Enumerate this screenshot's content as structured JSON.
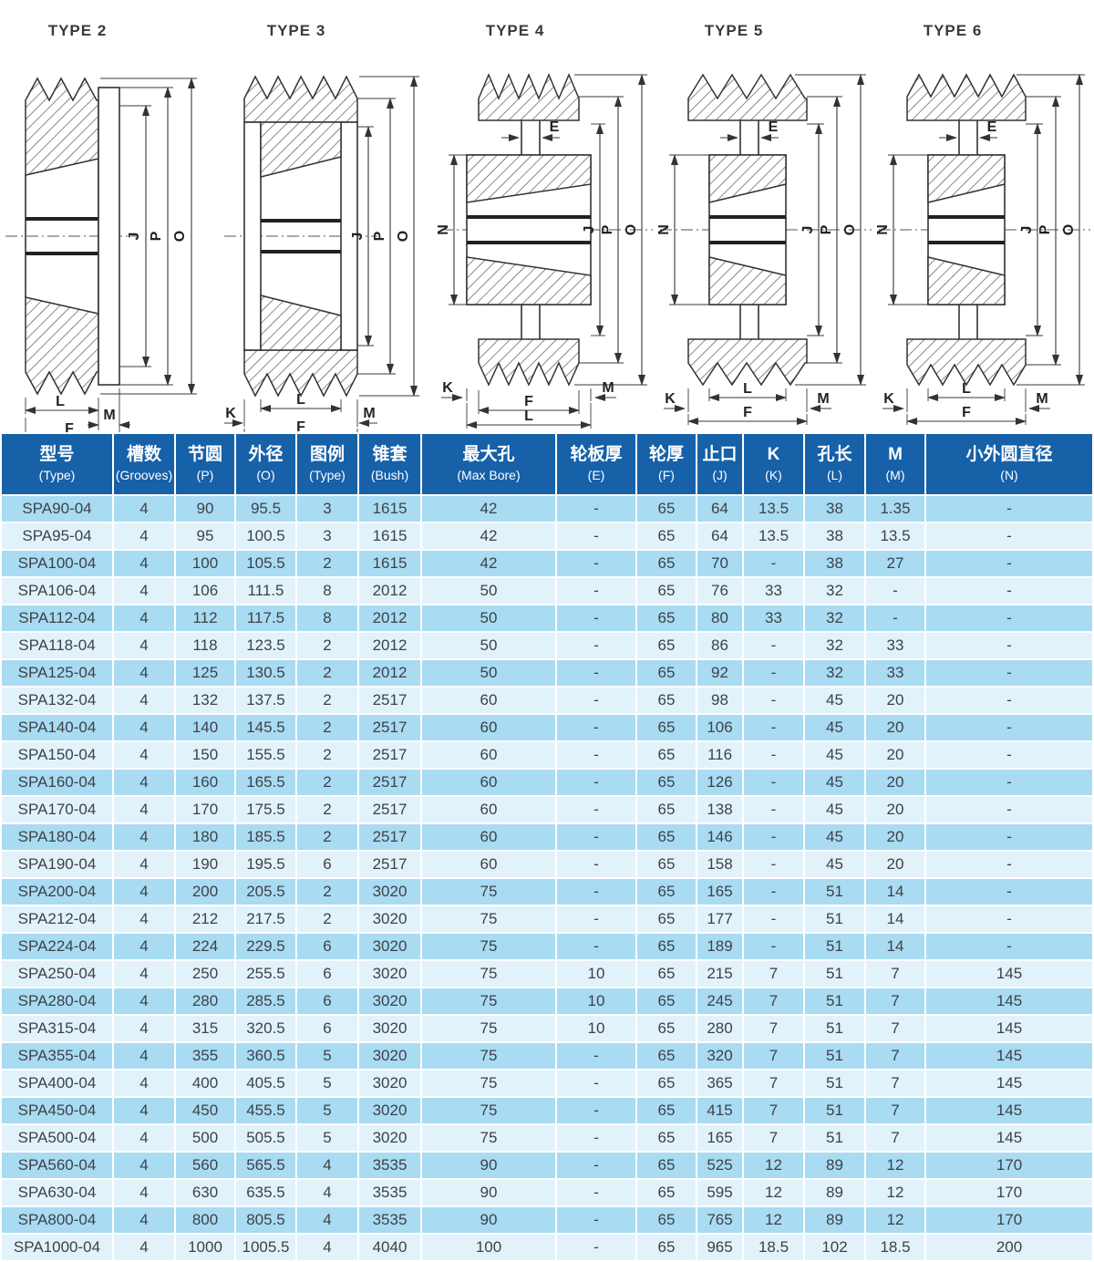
{
  "diagrams": {
    "items": [
      {
        "title": "TYPE 2",
        "dims": {
          "J": "J",
          "P": "P",
          "O": "O",
          "L": "L",
          "M": "M",
          "F": "F"
        }
      },
      {
        "title": "TYPE 3",
        "dims": {
          "J": "J",
          "P": "P",
          "O": "O",
          "L": "L",
          "K": "K",
          "M": "M",
          "F": "F"
        }
      },
      {
        "title": "TYPE 4",
        "dims": {
          "E": "E",
          "N": "N",
          "J": "J",
          "P": "P",
          "O": "O",
          "K": "K",
          "M": "M",
          "F": "F",
          "L": "L"
        }
      },
      {
        "title": "TYPE 5",
        "dims": {
          "E": "E",
          "N": "N",
          "J": "J",
          "P": "P",
          "O": "O",
          "L": "L",
          "K": "K",
          "M": "M",
          "F": "F"
        }
      },
      {
        "title": "TYPE 6",
        "dims": {
          "E": "E",
          "N": "N",
          "J": "J",
          "P": "P",
          "O": "O",
          "L": "L",
          "K": "K",
          "M": "M",
          "F": "F"
        }
      }
    ]
  },
  "table": {
    "colors": {
      "header_bg": "#1661a8",
      "header_text": "#ffffff",
      "row_odd": "#a9dbf3",
      "row_even": "#e2f2fb",
      "cell_text": "#3d4247"
    },
    "header": {
      "columns": [
        {
          "key": "model",
          "zh": "型号",
          "en": "(Type)"
        },
        {
          "key": "grooves",
          "zh": "槽数",
          "en": "(Grooves)"
        },
        {
          "key": "pitch",
          "zh": "节圆",
          "en": "(P)"
        },
        {
          "key": "od",
          "zh": "外径",
          "en": "(O)"
        },
        {
          "key": "figure",
          "zh": "图例",
          "en": "(Type)"
        },
        {
          "key": "bush",
          "zh": "锥套",
          "en": "(Bush)"
        },
        {
          "key": "maxbore",
          "zh": "最大孔",
          "en": "(Max Bore)"
        },
        {
          "key": "e",
          "zh": "轮板厚",
          "en": "(E)"
        },
        {
          "key": "f",
          "zh": "轮厚",
          "en": "(F)"
        },
        {
          "key": "j",
          "zh": "止口",
          "en": "(J)"
        },
        {
          "key": "k",
          "zh": "K",
          "en": "(K)"
        },
        {
          "key": "l",
          "zh": "孔长",
          "en": "(L)"
        },
        {
          "key": "m",
          "zh": "M",
          "en": "(M)"
        },
        {
          "key": "n",
          "zh": "小外圆直径",
          "en": "(N)"
        }
      ]
    },
    "rows": [
      [
        "SPA90-04",
        "4",
        "90",
        "95.5",
        "3",
        "1615",
        "42",
        "-",
        "65",
        "64",
        "13.5",
        "38",
        "1.35",
        "-"
      ],
      [
        "SPA95-04",
        "4",
        "95",
        "100.5",
        "3",
        "1615",
        "42",
        "-",
        "65",
        "64",
        "13.5",
        "38",
        "13.5",
        "-"
      ],
      [
        "SPA100-04",
        "4",
        "100",
        "105.5",
        "2",
        "1615",
        "42",
        "-",
        "65",
        "70",
        "-",
        "38",
        "27",
        "-"
      ],
      [
        "SPA106-04",
        "4",
        "106",
        "111.5",
        "8",
        "2012",
        "50",
        "-",
        "65",
        "76",
        "33",
        "32",
        "-",
        "-"
      ],
      [
        "SPA112-04",
        "4",
        "112",
        "117.5",
        "8",
        "2012",
        "50",
        "-",
        "65",
        "80",
        "33",
        "32",
        "-",
        "-"
      ],
      [
        "SPA118-04",
        "4",
        "118",
        "123.5",
        "2",
        "2012",
        "50",
        "-",
        "65",
        "86",
        "-",
        "32",
        "33",
        "-"
      ],
      [
        "SPA125-04",
        "4",
        "125",
        "130.5",
        "2",
        "2012",
        "50",
        "-",
        "65",
        "92",
        "-",
        "32",
        "33",
        "-"
      ],
      [
        "SPA132-04",
        "4",
        "132",
        "137.5",
        "2",
        "2517",
        "60",
        "-",
        "65",
        "98",
        "-",
        "45",
        "20",
        "-"
      ],
      [
        "SPA140-04",
        "4",
        "140",
        "145.5",
        "2",
        "2517",
        "60",
        "-",
        "65",
        "106",
        "-",
        "45",
        "20",
        "-"
      ],
      [
        "SPA150-04",
        "4",
        "150",
        "155.5",
        "2",
        "2517",
        "60",
        "-",
        "65",
        "116",
        "-",
        "45",
        "20",
        "-"
      ],
      [
        "SPA160-04",
        "4",
        "160",
        "165.5",
        "2",
        "2517",
        "60",
        "-",
        "65",
        "126",
        "-",
        "45",
        "20",
        "-"
      ],
      [
        "SPA170-04",
        "4",
        "170",
        "175.5",
        "2",
        "2517",
        "60",
        "-",
        "65",
        "138",
        "-",
        "45",
        "20",
        "-"
      ],
      [
        "SPA180-04",
        "4",
        "180",
        "185.5",
        "2",
        "2517",
        "60",
        "-",
        "65",
        "146",
        "-",
        "45",
        "20",
        "-"
      ],
      [
        "SPA190-04",
        "4",
        "190",
        "195.5",
        "6",
        "2517",
        "60",
        "-",
        "65",
        "158",
        "-",
        "45",
        "20",
        "-"
      ],
      [
        "SPA200-04",
        "4",
        "200",
        "205.5",
        "2",
        "3020",
        "75",
        "-",
        "65",
        "165",
        "-",
        "51",
        "14",
        "-"
      ],
      [
        "SPA212-04",
        "4",
        "212",
        "217.5",
        "2",
        "3020",
        "75",
        "-",
        "65",
        "177",
        "-",
        "51",
        "14",
        "-"
      ],
      [
        "SPA224-04",
        "4",
        "224",
        "229.5",
        "6",
        "3020",
        "75",
        "-",
        "65",
        "189",
        "-",
        "51",
        "14",
        "-"
      ],
      [
        "SPA250-04",
        "4",
        "250",
        "255.5",
        "6",
        "3020",
        "75",
        "10",
        "65",
        "215",
        "7",
        "51",
        "7",
        "145"
      ],
      [
        "SPA280-04",
        "4",
        "280",
        "285.5",
        "6",
        "3020",
        "75",
        "10",
        "65",
        "245",
        "7",
        "51",
        "7",
        "145"
      ],
      [
        "SPA315-04",
        "4",
        "315",
        "320.5",
        "6",
        "3020",
        "75",
        "10",
        "65",
        "280",
        "7",
        "51",
        "7",
        "145"
      ],
      [
        "SPA355-04",
        "4",
        "355",
        "360.5",
        "5",
        "3020",
        "75",
        "-",
        "65",
        "320",
        "7",
        "51",
        "7",
        "145"
      ],
      [
        "SPA400-04",
        "4",
        "400",
        "405.5",
        "5",
        "3020",
        "75",
        "-",
        "65",
        "365",
        "7",
        "51",
        "7",
        "145"
      ],
      [
        "SPA450-04",
        "4",
        "450",
        "455.5",
        "5",
        "3020",
        "75",
        "-",
        "65",
        "415",
        "7",
        "51",
        "7",
        "145"
      ],
      [
        "SPA500-04",
        "4",
        "500",
        "505.5",
        "5",
        "3020",
        "75",
        "-",
        "65",
        "165",
        "7",
        "51",
        "7",
        "145"
      ],
      [
        "SPA560-04",
        "4",
        "560",
        "565.5",
        "4",
        "3535",
        "90",
        "-",
        "65",
        "525",
        "12",
        "89",
        "12",
        "170"
      ],
      [
        "SPA630-04",
        "4",
        "630",
        "635.5",
        "4",
        "3535",
        "90",
        "-",
        "65",
        "595",
        "12",
        "89",
        "12",
        "170"
      ],
      [
        "SPA800-04",
        "4",
        "800",
        "805.5",
        "4",
        "3535",
        "90",
        "-",
        "65",
        "765",
        "12",
        "89",
        "12",
        "170"
      ],
      [
        "SPA1000-04",
        "4",
        "1000",
        "1005.5",
        "4",
        "4040",
        "100",
        "-",
        "65",
        "965",
        "18.5",
        "102",
        "18.5",
        "200"
      ]
    ]
  }
}
